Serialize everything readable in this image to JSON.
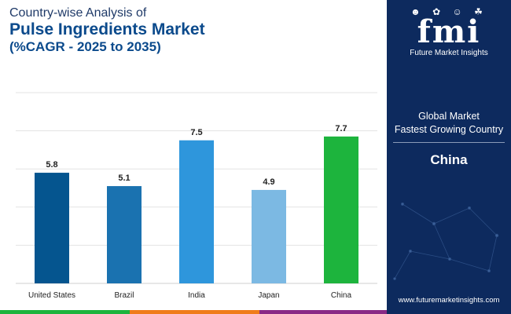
{
  "header": {
    "subtitle": "Country-wise Analysis of",
    "title": "Pulse Ingredients Market",
    "subtitle2": "(%CAGR - 2025 to 2035)"
  },
  "chart_data": {
    "type": "bar",
    "title": "Pulse Ingredients Market",
    "categories": [
      "United States",
      "Brazil",
      "India",
      "Japan",
      "China"
    ],
    "values": [
      5.8,
      5.1,
      7.5,
      4.9,
      7.7
    ],
    "value_labels": [
      "5.8",
      "5.1",
      "7.5",
      "4.9",
      "7.7"
    ],
    "colors": [
      "#05558f",
      "#1a72b0",
      "#2e96dc",
      "#7cb9e3",
      "#1db43d"
    ],
    "ylim": [
      0,
      10
    ],
    "grid": true,
    "xlabel": "",
    "ylabel": ""
  },
  "sidebar": {
    "logo_icons": "☻ ✿ ☺ ☘",
    "logo_letters": "fmi",
    "logo_text": "Future Market Insights",
    "label_line1": "Global Market",
    "label_line2": "Fastest Growing Country",
    "country": "China",
    "website": "www.futuremarketinsights.com"
  },
  "footer": {
    "colors": [
      "#1db43d",
      "#f07c1a",
      "#8a2a86",
      "#0d2a5e"
    ]
  }
}
